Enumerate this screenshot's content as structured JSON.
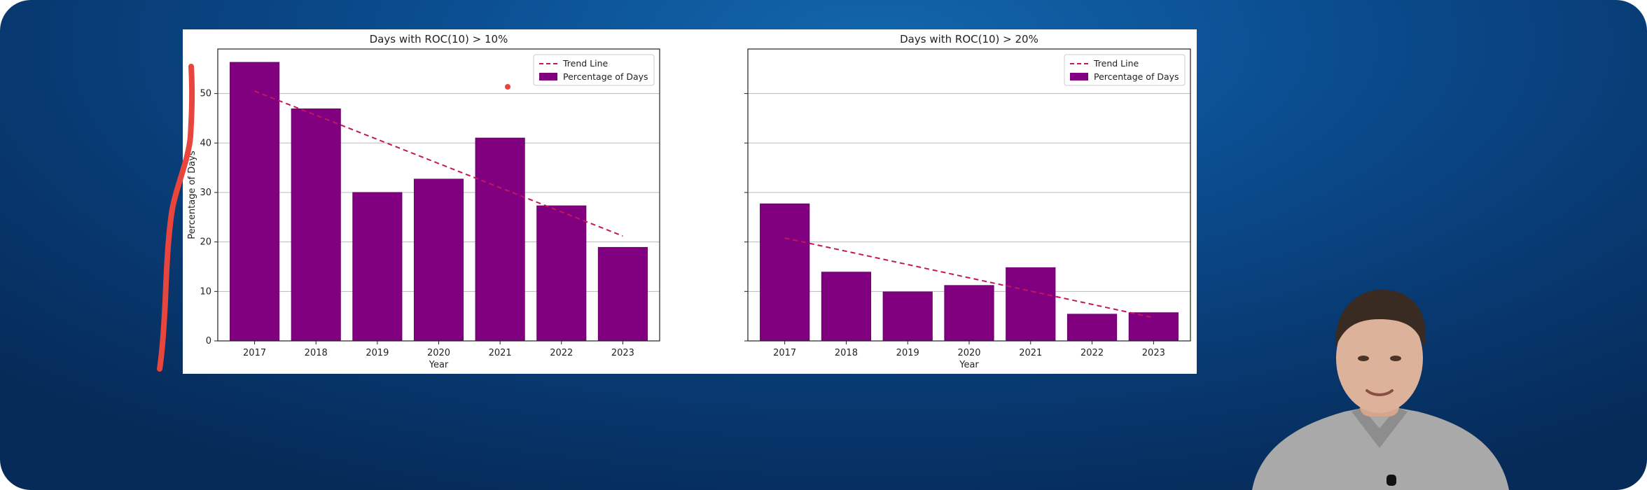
{
  "chart_data": [
    {
      "type": "bar",
      "title": "Days with ROC(10) > 10%",
      "xlabel": "Year",
      "ylabel": "Percentage of Days",
      "categories": [
        "2017",
        "2018",
        "2019",
        "2020",
        "2021",
        "2022",
        "2023"
      ],
      "series": [
        {
          "name": "Percentage of Days",
          "values": [
            56.3,
            46.9,
            30.0,
            32.7,
            41.0,
            27.3,
            18.9
          ]
        }
      ],
      "trend_line": {
        "name": "Trend Line",
        "start": 50.5,
        "end": 21.2
      },
      "ylim": [
        0,
        59
      ],
      "yticks": [
        0,
        10,
        20,
        30,
        40,
        50
      ],
      "grid": "horizontal",
      "legend": "top-right"
    },
    {
      "type": "bar",
      "title": "Days with ROC(10) > 20%",
      "xlabel": "Year",
      "ylabel": "",
      "categories": [
        "2017",
        "2018",
        "2019",
        "2020",
        "2021",
        "2022",
        "2023"
      ],
      "series": [
        {
          "name": "Percentage of Days",
          "values": [
            27.7,
            13.9,
            9.9,
            11.2,
            14.8,
            5.4,
            5.7
          ]
        }
      ],
      "trend_line": {
        "name": "Trend Line",
        "start": 20.8,
        "end": 4.7
      },
      "ylim": [
        0,
        59
      ],
      "yticks": [
        0,
        10,
        20,
        30,
        40,
        50
      ],
      "grid": "horizontal",
      "legend": "top-right"
    }
  ],
  "colors": {
    "bar": "#800080",
    "bar_edge": "#6a006a",
    "trend": "#c2185b",
    "grid": "#b8b8b8",
    "annotation": "#e8453c"
  },
  "overlay": {
    "annotation": "red-hand-drawn-marker-stroke",
    "presenter": "presenter-webcam"
  }
}
